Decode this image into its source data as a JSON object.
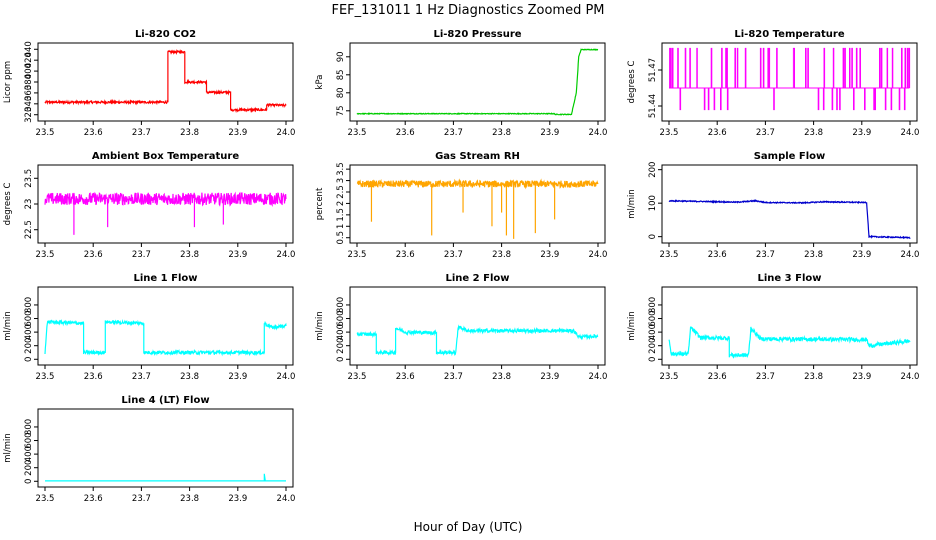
{
  "figure": {
    "title": "FEF_131011 1 Hz Diagnostics Zoomed PM",
    "xlabel": "Hour of Day (UTC)"
  },
  "chart_data": [
    {
      "type": "line",
      "title": "Li-820 CO2",
      "ylabel": "Licor ppm",
      "color": "#ff0000",
      "xlim": [
        23.5,
        24.0
      ],
      "ylim": [
        314,
        446
      ],
      "xticks": [
        "23.5",
        "23.6",
        "23.7",
        "23.8",
        "23.9",
        "24.0"
      ],
      "yticks": [
        320,
        340,
        360,
        380,
        400,
        420,
        440
      ],
      "segments": [
        [
          23.5,
          343
        ],
        [
          23.755,
          343
        ],
        [
          23.755,
          435
        ],
        [
          23.79,
          435
        ],
        [
          23.79,
          380
        ],
        [
          23.835,
          380
        ],
        [
          23.835,
          361
        ],
        [
          23.885,
          361
        ],
        [
          23.885,
          329
        ],
        [
          23.96,
          329
        ],
        [
          23.96,
          338
        ],
        [
          24.0,
          337
        ]
      ],
      "noise": 2,
      "spikes": []
    },
    {
      "type": "line",
      "title": "Li-820 Pressure",
      "ylabel": "kPa",
      "color": "#00cc00",
      "xlim": [
        23.5,
        24.0
      ],
      "ylim": [
        73,
        93
      ],
      "xticks": [
        "23.5",
        "23.6",
        "23.7",
        "23.8",
        "23.9",
        "24.0"
      ],
      "yticks": [
        75,
        80,
        85,
        90
      ],
      "segments": [
        [
          23.5,
          74.2
        ],
        [
          23.91,
          74.2
        ],
        [
          23.91,
          74.0
        ],
        [
          23.945,
          74.0
        ],
        [
          23.955,
          80
        ],
        [
          23.96,
          90
        ],
        [
          23.965,
          92
        ],
        [
          24.0,
          92
        ]
      ],
      "noise": 0.1,
      "spikes": []
    },
    {
      "type": "line",
      "title": "Li-820 Temperature",
      "ylabel": "degrees C",
      "color": "#ff00ff",
      "xlim": [
        23.5,
        24.0
      ],
      "ylim": [
        51.43,
        51.49
      ],
      "xticks": [
        "23.5",
        "23.6",
        "23.7",
        "23.8",
        "23.9",
        "24.0"
      ],
      "yticks": [
        51.44,
        51.47
      ],
      "segments": [
        [
          23.5,
          51.452
        ],
        [
          24.0,
          51.452
        ]
      ],
      "noise": 0,
      "style": "quantized-toggle",
      "levels": [
        51.437,
        51.455,
        51.488
      ]
    },
    {
      "type": "line",
      "title": "Ambient Box Temperature",
      "ylabel": "degrees C",
      "color": "#ff00ff",
      "xlim": [
        23.5,
        24.0
      ],
      "ylim": [
        22.3,
        23.7
      ],
      "xticks": [
        "23.5",
        "23.6",
        "23.7",
        "23.8",
        "23.9",
        "24.0"
      ],
      "yticks": [
        22.5,
        23.0,
        23.5
      ],
      "segments": [
        [
          23.5,
          23.1
        ],
        [
          24.0,
          23.1
        ]
      ],
      "noise": 0.12,
      "spikes": [
        [
          23.56,
          22.4
        ],
        [
          23.63,
          22.55
        ],
        [
          23.81,
          22.55
        ],
        [
          23.87,
          22.6
        ]
      ]
    },
    {
      "type": "line",
      "title": "Gas Stream RH",
      "ylabel": "percent",
      "color": "#ffa500",
      "xlim": [
        23.5,
        24.0
      ],
      "ylim": [
        0.4,
        3.55
      ],
      "xticks": [
        "23.5",
        "23.6",
        "23.7",
        "23.8",
        "23.9",
        "24.0"
      ],
      "yticks": [
        0.5,
        1.0,
        1.5,
        2.0,
        2.5,
        3.0,
        3.5
      ],
      "segments": [
        [
          23.5,
          2.85
        ],
        [
          24.0,
          2.85
        ]
      ],
      "noise": 0.15,
      "spikes": [
        [
          23.53,
          1.2
        ],
        [
          23.655,
          0.6
        ],
        [
          23.78,
          1.0
        ],
        [
          23.8,
          1.6
        ],
        [
          23.81,
          0.6
        ],
        [
          23.825,
          0.45
        ],
        [
          23.87,
          0.7
        ],
        [
          23.91,
          1.3
        ],
        [
          23.72,
          1.6
        ]
      ]
    },
    {
      "type": "line",
      "title": "Sample Flow",
      "ylabel": "ml/min",
      "color": "#0000cc",
      "xlim": [
        23.5,
        24.0
      ],
      "ylim": [
        -10,
        205
      ],
      "xticks": [
        "23.5",
        "23.6",
        "23.7",
        "23.8",
        "23.9",
        "24.0"
      ],
      "yticks": [
        0,
        100,
        200
      ],
      "segments": [
        [
          23.5,
          107
        ],
        [
          23.64,
          103
        ],
        [
          23.68,
          107
        ],
        [
          23.7,
          102
        ],
        [
          23.78,
          101
        ],
        [
          23.82,
          104
        ],
        [
          23.91,
          102
        ],
        [
          23.915,
          0
        ],
        [
          24.0,
          -3
        ]
      ],
      "noise": 1.5,
      "spikes": []
    },
    {
      "type": "line",
      "title": "Line 1 Flow",
      "ylabel": "ml/min",
      "color": "#00ffff",
      "xlim": [
        23.5,
        24.0
      ],
      "ylim": [
        -40,
        1020
      ],
      "xticks": [
        "23.5",
        "23.6",
        "23.7",
        "23.8",
        "23.9",
        "24.0"
      ],
      "yticks": [
        0,
        200,
        400,
        600,
        800
      ],
      "segments": [
        [
          23.5,
          100
        ],
        [
          23.505,
          550
        ],
        [
          23.58,
          530
        ],
        [
          23.58,
          100
        ],
        [
          23.625,
          100
        ],
        [
          23.625,
          550
        ],
        [
          23.705,
          530
        ],
        [
          23.705,
          100
        ],
        [
          23.955,
          100
        ],
        [
          23.955,
          530
        ],
        [
          23.97,
          470
        ],
        [
          24.0,
          490
        ]
      ],
      "noise": 25,
      "spikes": []
    },
    {
      "type": "line",
      "title": "Line 2 Flow",
      "ylabel": "ml/min",
      "color": "#00ffff",
      "xlim": [
        23.5,
        24.0
      ],
      "ylim": [
        -40,
        1020
      ],
      "xticks": [
        "23.5",
        "23.6",
        "23.7",
        "23.8",
        "23.9",
        "24.0"
      ],
      "yticks": [
        0,
        200,
        400,
        600,
        800
      ],
      "segments": [
        [
          23.5,
          370
        ],
        [
          23.54,
          370
        ],
        [
          23.54,
          100
        ],
        [
          23.58,
          100
        ],
        [
          23.58,
          460
        ],
        [
          23.6,
          400
        ],
        [
          23.665,
          390
        ],
        [
          23.665,
          100
        ],
        [
          23.705,
          100
        ],
        [
          23.71,
          480
        ],
        [
          23.73,
          420
        ],
        [
          23.95,
          420
        ],
        [
          23.96,
          330
        ],
        [
          24.0,
          340
        ]
      ],
      "noise": 25,
      "spikes": []
    },
    {
      "type": "line",
      "title": "Line 3 Flow",
      "ylabel": "ml/min",
      "color": "#00ffff",
      "xlim": [
        23.5,
        24.0
      ],
      "ylim": [
        -40,
        1020
      ],
      "xticks": [
        "23.5",
        "23.6",
        "23.7",
        "23.8",
        "23.9",
        "24.0"
      ],
      "yticks": [
        0,
        200,
        400,
        600,
        800
      ],
      "segments": [
        [
          23.5,
          300
        ],
        [
          23.505,
          80
        ],
        [
          23.54,
          80
        ],
        [
          23.545,
          470
        ],
        [
          23.565,
          320
        ],
        [
          23.625,
          310
        ],
        [
          23.625,
          60
        ],
        [
          23.665,
          60
        ],
        [
          23.67,
          460
        ],
        [
          23.69,
          300
        ],
        [
          23.91,
          290
        ],
        [
          23.915,
          200
        ],
        [
          24.0,
          270
        ]
      ],
      "noise": 30,
      "spikes": []
    },
    {
      "type": "line",
      "title": "Line 4 (LT) Flow",
      "ylabel": "ml/min",
      "color": "#00ffff",
      "xlim": [
        23.5,
        24.0
      ],
      "ylim": [
        -40,
        1020
      ],
      "xticks": [
        "23.5",
        "23.6",
        "23.7",
        "23.8",
        "23.9",
        "24.0"
      ],
      "yticks": [
        0,
        200,
        400,
        600,
        800
      ],
      "segments": [
        [
          23.5,
          5
        ],
        [
          23.955,
          5
        ],
        [
          23.955,
          110
        ],
        [
          23.957,
          5
        ],
        [
          24.0,
          5
        ]
      ],
      "noise": 0,
      "spikes": []
    }
  ]
}
